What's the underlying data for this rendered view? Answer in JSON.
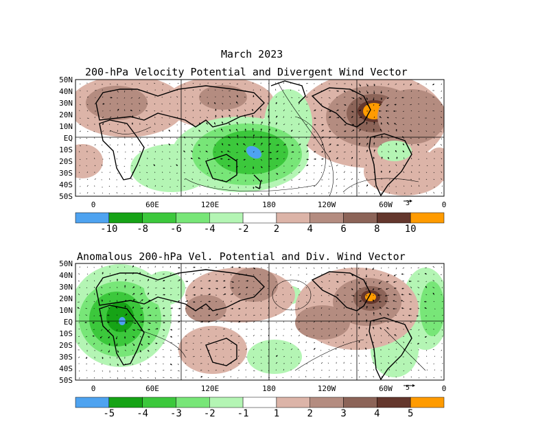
{
  "header": {
    "title": "March 2023",
    "panel1_title": "200-hPa Velocity Potential and Divergent Wind Vector",
    "panel2_title": "Anomalous 200-hPa Vel. Potential and Div. Wind Vector"
  },
  "axes": {
    "lat_labels": [
      "50N",
      "40N",
      "30N",
      "20N",
      "10N",
      "EQ",
      "10S",
      "20S",
      "30S",
      "40S",
      "50S"
    ],
    "lon_labels": [
      "0",
      "60E",
      "120E",
      "180",
      "120W",
      "60W",
      "0"
    ]
  },
  "panel1": {
    "vector_ref": "3",
    "colorbar_labels": [
      "-10",
      "-8",
      "-6",
      "-4",
      "-2",
      "2",
      "4",
      "6",
      "8",
      "10"
    ]
  },
  "panel2": {
    "vector_ref": "5",
    "colorbar_labels": [
      "-5",
      "-4",
      "-3",
      "-2",
      "-1",
      "1",
      "2",
      "3",
      "4",
      "5"
    ]
  },
  "colors": {
    "scale": [
      "#4ea3f0",
      "#16a316",
      "#3cc83c",
      "#78e678",
      "#b4f5b4",
      "#ffffff",
      "#dcb4a8",
      "#b48c80",
      "#8c6458",
      "#64372d",
      "#ff9b00"
    ]
  }
}
